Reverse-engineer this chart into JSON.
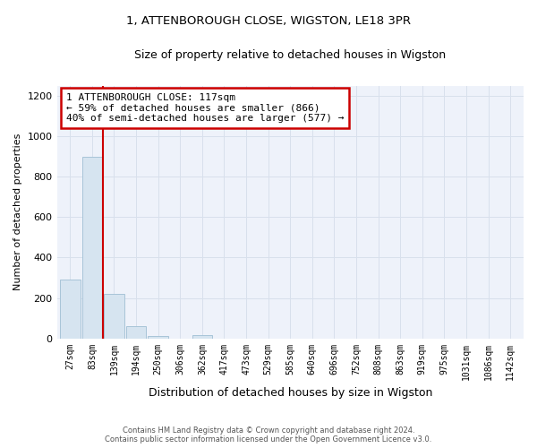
{
  "title_line1": "1, ATTENBOROUGH CLOSE, WIGSTON, LE18 3PR",
  "title_line2": "Size of property relative to detached houses in Wigston",
  "xlabel": "Distribution of detached houses by size in Wigston",
  "ylabel": "Number of detached properties",
  "bar_labels": [
    "27sqm",
    "83sqm",
    "139sqm",
    "194sqm",
    "250sqm",
    "306sqm",
    "362sqm",
    "417sqm",
    "473sqm",
    "529sqm",
    "585sqm",
    "640sqm",
    "696sqm",
    "752sqm",
    "808sqm",
    "863sqm",
    "919sqm",
    "975sqm",
    "1031sqm",
    "1086sqm",
    "1142sqm"
  ],
  "bar_values": [
    290,
    900,
    220,
    60,
    10,
    0,
    15,
    0,
    0,
    0,
    0,
    0,
    0,
    0,
    0,
    0,
    0,
    0,
    0,
    0,
    0
  ],
  "bar_color": "#d6e4f0",
  "bar_edge_color": "#a8c4d8",
  "property_line_x": 1.5,
  "property_line_color": "#cc0000",
  "annotation_text": "1 ATTENBOROUGH CLOSE: 117sqm\n← 59% of detached houses are smaller (866)\n40% of semi-detached houses are larger (577) →",
  "annotation_box_color": "white",
  "annotation_box_edge_color": "#cc0000",
  "ylim": [
    0,
    1250
  ],
  "yticks": [
    0,
    200,
    400,
    600,
    800,
    1000,
    1200
  ],
  "grid_color": "#d8e0ec",
  "footnote": "Contains HM Land Registry data © Crown copyright and database right 2024.\nContains public sector information licensed under the Open Government Licence v3.0.",
  "bg_color": "#ffffff",
  "plot_bg_color": "#eef2fa"
}
